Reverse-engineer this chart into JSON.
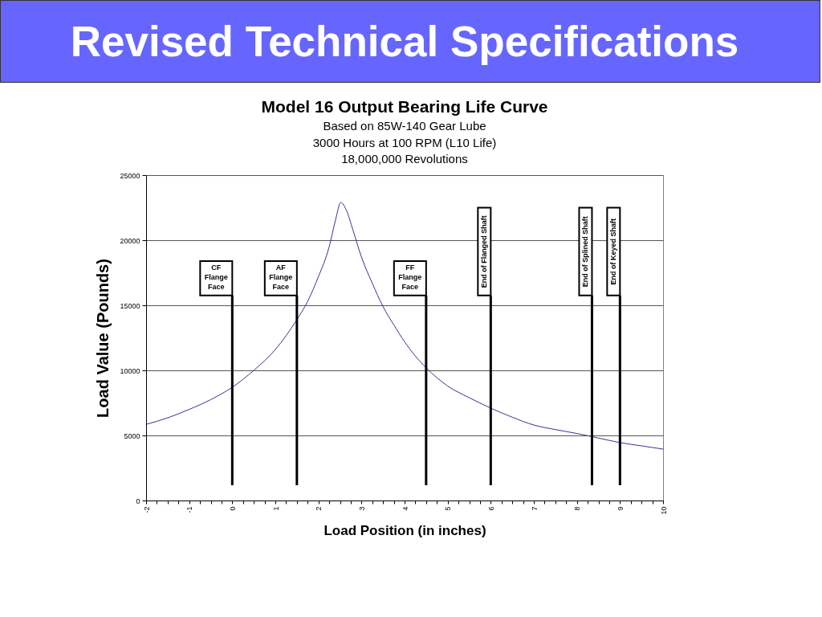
{
  "chart_data": {
    "type": "line",
    "title": "Revised Technical Specifications",
    "subtitle": "Model 16 Output Bearing Life Curve",
    "annotations": [
      "Based on 85W-140 Gear Lube",
      "3000 Hours at 100 RPM (L10 Life)",
      "18,000,000 Revolutions"
    ],
    "xlabel": "Load Position (in inches)",
    "ylabel": "Load Value (Pounds)",
    "x": [
      -2,
      -1.5,
      -1,
      -0.5,
      0,
      0.5,
      1,
      1.5,
      1.75,
      2,
      2.25,
      2.4,
      2.52,
      2.65,
      2.8,
      3,
      3.25,
      3.5,
      3.75,
      4,
      4.25,
      4.5,
      5,
      5.5,
      6,
      6.5,
      7,
      7.5,
      8,
      8.5,
      9,
      9.5,
      10
    ],
    "series": [
      {
        "color": "#333399",
        "values": [
          5850,
          6350,
          7000,
          7750,
          8700,
          10000,
          11600,
          13900,
          15300,
          17200,
          19500,
          21600,
          22900,
          22300,
          20800,
          18700,
          16700,
          14900,
          13500,
          12200,
          11100,
          10200,
          8800,
          7900,
          7100,
          6400,
          5800,
          5450,
          5150,
          4800,
          4450,
          4200,
          3950
        ]
      }
    ],
    "xlim": [
      -2,
      10
    ],
    "ylim": [
      0,
      25000
    ],
    "xticks": [
      -2,
      {
        "value": -1.75,
        "label": null
      },
      {
        "value": -1.5,
        "label": null
      },
      {
        "value": -1.25,
        "label": null
      },
      -1,
      {
        "value": -0.75,
        "label": null
      },
      {
        "value": -0.5,
        "label": null
      },
      {
        "value": -0.25,
        "label": null
      },
      0,
      {
        "value": 0.25,
        "label": null
      },
      {
        "value": 0.5,
        "label": null
      },
      {
        "value": 0.75,
        "label": null
      },
      1,
      {
        "value": 1.25,
        "label": null
      },
      {
        "value": 1.5,
        "label": null
      },
      {
        "value": 1.75,
        "label": null
      },
      2,
      {
        "value": 2.25,
        "label": null
      },
      {
        "value": 2.5,
        "label": null
      },
      {
        "value": 2.75,
        "label": null
      },
      3,
      {
        "value": 3.25,
        "label": null
      },
      {
        "value": 3.5,
        "label": null
      },
      {
        "value": 3.75,
        "label": null
      },
      4,
      {
        "value": 4.25,
        "label": null
      },
      {
        "value": 4.5,
        "label": null
      },
      {
        "value": 4.75,
        "label": null
      },
      5,
      {
        "value": 5.25,
        "label": null
      },
      {
        "value": 5.5,
        "label": null
      },
      {
        "value": 5.75,
        "label": null
      },
      6,
      {
        "value": 6.25,
        "label": null
      },
      {
        "value": 6.5,
        "label": null
      },
      {
        "value": 6.75,
        "label": null
      },
      7,
      {
        "value": 7.25,
        "label": null
      },
      {
        "value": 7.5,
        "label": null
      },
      {
        "value": 7.75,
        "label": null
      },
      8,
      {
        "value": 8.25,
        "label": null
      },
      {
        "value": 8.5,
        "label": null
      },
      {
        "value": 8.75,
        "label": null
      },
      9,
      {
        "value": 9.25,
        "label": null
      },
      {
        "value": 9.5,
        "label": null
      },
      {
        "value": 9.75,
        "label": null
      },
      10
    ],
    "yticks": [
      0,
      5000,
      10000,
      15000,
      20000,
      25000
    ],
    "grid": "y",
    "ref_lines": [
      {
        "axis": "x",
        "value": 0,
        "label": "CF Flange Face"
      },
      {
        "axis": "x",
        "value": 1.5,
        "label": "AF Flange Face"
      },
      {
        "axis": "x",
        "value": 4.5,
        "label": "FF Flange Face"
      },
      {
        "axis": "x",
        "value": 6,
        "label": "End of Flanged Shaft"
      },
      {
        "axis": "x",
        "value": 8.35,
        "label": "End of Splined Shaft"
      },
      {
        "axis": "x",
        "value": 9,
        "label": "End of Keyed Shaft"
      }
    ]
  }
}
